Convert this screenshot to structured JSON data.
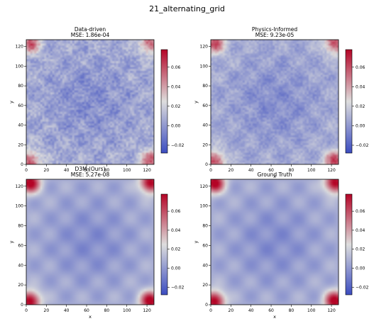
{
  "figure": {
    "suptitle": "21_alternating_grid"
  },
  "colors": {
    "cmap": "coolwarm",
    "cool_end": "#3b4cc0",
    "mid": "#dddddd",
    "warm_end": "#b40426"
  },
  "chart_data": [
    {
      "type": "heatmap",
      "title": "Data-driven",
      "subtitle": "MSE: 1.86e-04",
      "xlabel": "",
      "ylabel": "y",
      "xlim": [
        0,
        127
      ],
      "ylim": [
        0,
        127
      ],
      "xticks": [
        "0",
        "20",
        "40",
        "60",
        "80",
        "100",
        "120"
      ],
      "yticks": [
        "0",
        "20",
        "40",
        "60",
        "80",
        "100",
        "120"
      ],
      "colorbar": {
        "vmin": -0.028,
        "vmax": 0.078,
        "ticks": [
          "0.06",
          "0.04",
          "0.02",
          "0.00",
          "−0.02"
        ]
      },
      "field": {
        "pattern": "alternating checkerboard, hot corners",
        "grid_cells": 8,
        "corner_peak": 0.05,
        "noise": "strong"
      }
    },
    {
      "type": "heatmap",
      "title": "Physics-Informed",
      "subtitle": "MSE: 9.23e-05",
      "xlabel": "x",
      "ylabel": "y",
      "xlim": [
        0,
        127
      ],
      "ylim": [
        0,
        127
      ],
      "xticks": [
        "0",
        "20",
        "40",
        "60",
        "80",
        "100",
        "120"
      ],
      "yticks": [
        "0",
        "20",
        "40",
        "60",
        "80",
        "100",
        "120"
      ],
      "colorbar": {
        "vmin": -0.028,
        "vmax": 0.078,
        "ticks": [
          "0.06",
          "0.04",
          "0.02",
          "0.00",
          "−0.02"
        ]
      },
      "field": {
        "pattern": "alternating checkerboard, hot corners",
        "grid_cells": 8,
        "corner_peak": 0.055,
        "noise": "moderate"
      }
    },
    {
      "type": "heatmap",
      "title": "D3M (Ours)",
      "subtitle": "MSE: 5.27e-08",
      "xlabel": "x",
      "ylabel": "y",
      "xlim": [
        0,
        127
      ],
      "ylim": [
        0,
        127
      ],
      "xticks": [
        "0",
        "20",
        "40",
        "60",
        "80",
        "100",
        "120"
      ],
      "yticks": [
        "0",
        "20",
        "40",
        "60",
        "80",
        "100",
        "120"
      ],
      "colorbar": {
        "vmin": -0.028,
        "vmax": 0.078,
        "ticks": [
          "0.06",
          "0.04",
          "0.02",
          "0.00",
          "−0.02"
        ]
      },
      "field": {
        "pattern": "smooth alternating grid, hot corners",
        "grid_cells": 8,
        "corner_peak": 0.075,
        "noise": "none"
      }
    },
    {
      "type": "heatmap",
      "title": "Ground Truth",
      "subtitle": "",
      "xlabel": "x",
      "ylabel": "y",
      "xlim": [
        0,
        127
      ],
      "ylim": [
        0,
        127
      ],
      "xticks": [
        "0",
        "20",
        "40",
        "60",
        "80",
        "100",
        "120"
      ],
      "yticks": [
        "0",
        "20",
        "40",
        "60",
        "80",
        "100",
        "120"
      ],
      "colorbar": {
        "vmin": -0.028,
        "vmax": 0.078,
        "ticks": [
          "0.06",
          "0.04",
          "0.02",
          "0.00",
          "−0.02"
        ]
      },
      "field": {
        "pattern": "smooth alternating grid, hot corners",
        "grid_cells": 8,
        "corner_peak": 0.075,
        "noise": "none"
      }
    }
  ]
}
